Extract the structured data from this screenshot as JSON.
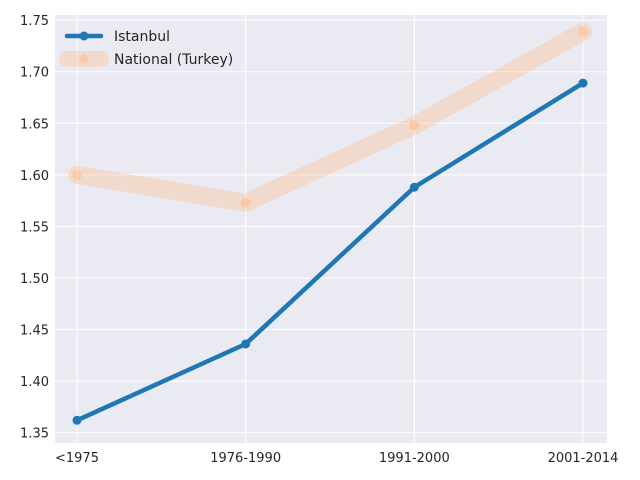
{
  "chart_data": {
    "type": "line",
    "categories": [
      "<1975",
      "1976-1990",
      "1991-2000",
      "2001-2014"
    ],
    "series": [
      {
        "name": "Istanbul",
        "values": [
          1.362,
          1.436,
          1.588,
          1.689
        ],
        "color": "#1f77b4",
        "style": "thick solid line with circle markers"
      },
      {
        "name": "National (Turkey)",
        "values": [
          1.6,
          1.573,
          1.648,
          1.739
        ],
        "color": "#ffbb88",
        "style": "wide translucent band with circle markers"
      }
    ],
    "yticks": [
      1.35,
      1.4,
      1.45,
      1.5,
      1.55,
      1.6,
      1.65,
      1.7,
      1.75
    ],
    "ylim": [
      1.34,
      1.755
    ],
    "grid": true,
    "legend_position": "top-left",
    "background": "#eaeaf2",
    "title": "",
    "xlabel": "",
    "ylabel": ""
  }
}
